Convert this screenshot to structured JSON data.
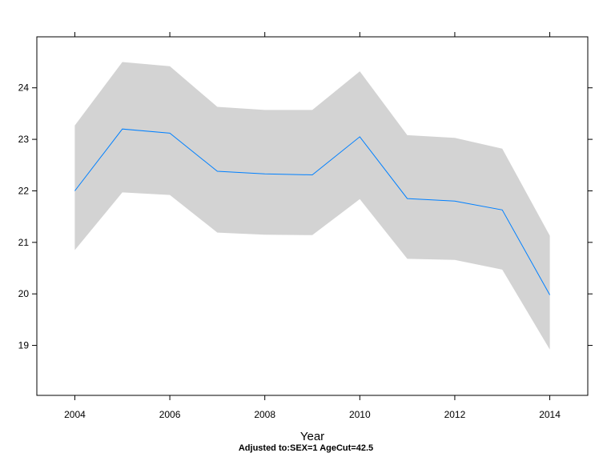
{
  "chart_data": {
    "type": "line",
    "title": "",
    "xlabel": "Year",
    "ylabel": "",
    "footnote": "Adjusted to:SEX=1 AgeCut=42.5",
    "x": [
      2004,
      2005,
      2006,
      2007,
      2008,
      2009,
      2010,
      2011,
      2012,
      2013,
      2014
    ],
    "series": [
      {
        "values": [
          22.0,
          23.2,
          23.12,
          22.38,
          22.33,
          22.31,
          23.05,
          21.85,
          21.8,
          21.63,
          19.98
        ],
        "lower": [
          20.85,
          21.97,
          21.92,
          21.19,
          21.15,
          21.14,
          21.84,
          20.68,
          20.66,
          20.47,
          18.92
        ],
        "upper": [
          23.27,
          24.5,
          24.42,
          23.63,
          23.57,
          23.57,
          24.32,
          23.08,
          23.03,
          22.82,
          21.13
        ],
        "color": "#0080ff",
        "band_color": "#d3d3d3"
      }
    ],
    "xticks": [
      "2004",
      "2006",
      "2008",
      "2010",
      "2012",
      "2014"
    ],
    "yticks": [
      "19",
      "20",
      "21",
      "22",
      "23",
      "24"
    ],
    "xlim": [
      2003.2,
      2014.8
    ],
    "ylim": [
      18.03,
      24.99
    ],
    "grid": false,
    "legend": "none"
  }
}
